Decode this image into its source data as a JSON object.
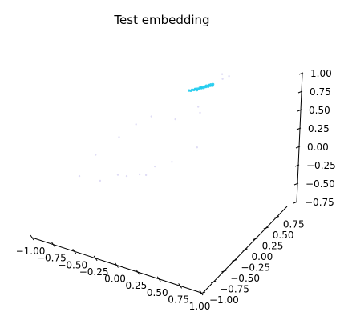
{
  "chart_data": {
    "type": "scatter",
    "projection": "3d",
    "title": "Test embedding",
    "xlabel": "",
    "ylabel": "",
    "zlabel": "",
    "xlim": [
      -1.0,
      1.0
    ],
    "ylim": [
      -1.0,
      1.0
    ],
    "zlim": [
      -0.75,
      1.0
    ],
    "grid": false,
    "panes": "hidden",
    "x_ticks": [
      "−1.00",
      "−0.75",
      "−0.50",
      "−0.25",
      "0.00",
      "0.25",
      "0.50",
      "0.75",
      "1.00"
    ],
    "y_ticks": [
      "−1.00",
      "−0.75",
      "−0.50",
      "−0.25",
      "0.00",
      "0.25",
      "0.50",
      "0.75"
    ],
    "z_ticks": [
      "−0.75",
      "−0.50",
      "−0.25",
      "0.00",
      "0.25",
      "0.50",
      "0.75",
      "1.00"
    ],
    "series": [
      {
        "color": "#22ccee",
        "points": [
          [
            0.0,
            0.35,
            1.0
          ],
          [
            0.03,
            0.37,
            1.0
          ],
          [
            0.06,
            0.39,
            1.0
          ],
          [
            0.09,
            0.4,
            0.99
          ],
          [
            0.12,
            0.41,
            0.99
          ],
          [
            0.15,
            0.42,
            0.99
          ],
          [
            0.18,
            0.43,
            0.98
          ],
          [
            0.21,
            0.44,
            0.98
          ],
          [
            0.24,
            0.45,
            0.97
          ],
          [
            0.27,
            0.46,
            0.97
          ],
          [
            0.3,
            0.47,
            0.96
          ],
          [
            0.02,
            0.36,
            0.99
          ],
          [
            0.05,
            0.38,
            0.99
          ],
          [
            0.08,
            0.4,
            0.98
          ],
          [
            0.11,
            0.41,
            0.98
          ],
          [
            0.14,
            0.42,
            0.98
          ],
          [
            0.17,
            0.43,
            0.97
          ],
          [
            0.2,
            0.44,
            0.97
          ],
          [
            0.23,
            0.45,
            0.96
          ],
          [
            0.26,
            0.46,
            0.96
          ],
          [
            0.29,
            0.47,
            0.95
          ],
          [
            0.07,
            0.39,
            0.99
          ],
          [
            0.13,
            0.42,
            0.99
          ],
          [
            0.19,
            0.44,
            0.98
          ],
          [
            0.25,
            0.45,
            0.97
          ]
        ]
      },
      {
        "color": "#dfdcf5",
        "points": [
          [
            0.45,
            0.5,
            0.96
          ],
          [
            0.55,
            0.52,
            0.95
          ],
          [
            -0.6,
            0.05,
            0.8
          ],
          [
            -0.45,
            0.15,
            0.85
          ],
          [
            0.7,
            0.35,
            0.85
          ],
          [
            -0.85,
            -0.3,
            0.45
          ],
          [
            0.8,
            0.0,
            0.3
          ],
          [
            0.75,
            -0.25,
            0.1
          ],
          [
            -0.5,
            -0.7,
            -0.1
          ],
          [
            0.4,
            -0.75,
            -0.55
          ],
          [
            0.6,
            -0.6,
            -0.6
          ],
          [
            0.75,
            -0.5,
            -0.55
          ],
          [
            0.85,
            -0.35,
            -0.5
          ],
          [
            0.2,
            -0.85,
            -0.55
          ],
          [
            0.65,
            -0.55,
            -0.62
          ],
          [
            0.5,
            -0.7,
            -0.6
          ],
          [
            0.95,
            -0.1,
            -0.3
          ],
          [
            -0.2,
            0.6,
            0.9
          ],
          [
            -0.7,
            -0.1,
            0.65
          ]
        ]
      }
    ]
  }
}
